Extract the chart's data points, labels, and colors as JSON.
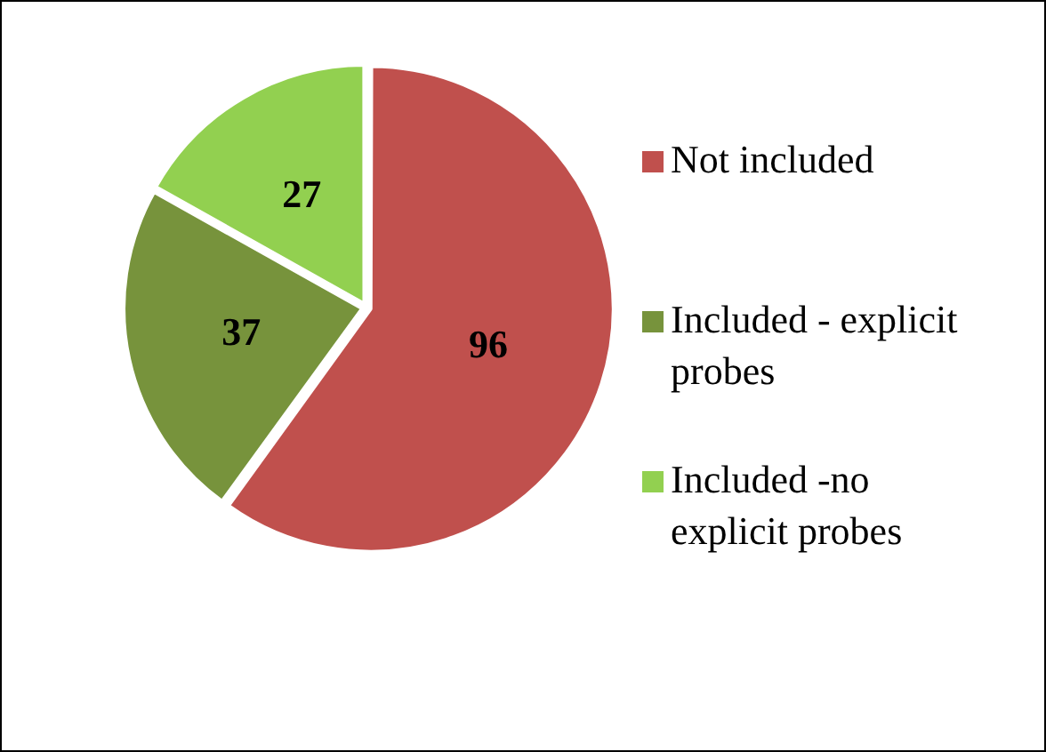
{
  "chart_data": {
    "type": "pie",
    "categories": [
      "Not included",
      "Included - explicit probes",
      "Included -no explicit probes"
    ],
    "values": [
      96,
      37,
      27
    ],
    "colors": [
      "#c0504d",
      "#77933c",
      "#92d050"
    ],
    "data_labels": true,
    "legend": "right"
  }
}
